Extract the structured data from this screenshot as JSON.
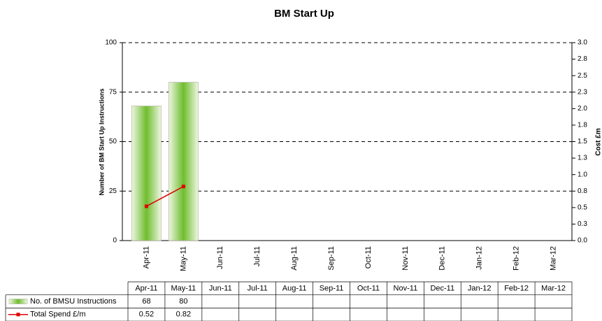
{
  "chart_data": {
    "type": "bar",
    "title": "BM Start Up",
    "y_label": "Number of BM Start Up Instructions",
    "y2_label": "Cost £m",
    "categories": [
      "Apr-11",
      "May-11",
      "Jun-11",
      "Jul-11",
      "Aug-11",
      "Sep-11",
      "Oct-11",
      "Nov-11",
      "Dec-11",
      "Jan-12",
      "Feb-12",
      "Mar-12"
    ],
    "series": [
      {
        "name": "No. of BMSU Instructions",
        "type": "bar",
        "color": "#7ac143",
        "values": [
          68,
          80,
          null,
          null,
          null,
          null,
          null,
          null,
          null,
          null,
          null,
          null
        ]
      },
      {
        "name": "Total Spend £/m",
        "type": "line",
        "axis": "y2",
        "color": "#e00000",
        "values": [
          0.52,
          0.82,
          null,
          null,
          null,
          null,
          null,
          null,
          null,
          null,
          null,
          null
        ]
      }
    ],
    "ylim": [
      0,
      100
    ],
    "yticks": [
      0,
      25,
      50,
      75,
      100
    ],
    "y2lim": [
      0,
      3
    ],
    "y2ticks": [
      {
        "value": 0,
        "label": "0.0"
      },
      {
        "value": 0.25,
        "label": "0.3"
      },
      {
        "value": 0.5,
        "label": "0.5"
      },
      {
        "value": 0.75,
        "label": "0.8"
      },
      {
        "value": 1,
        "label": "1.0"
      },
      {
        "value": 1.25,
        "label": "1.3"
      },
      {
        "value": 1.5,
        "label": "1.5"
      },
      {
        "value": 1.75,
        "label": "1.8"
      },
      {
        "value": 2,
        "label": "2.0"
      },
      {
        "value": 2.25,
        "label": "2.3"
      },
      {
        "value": 2.5,
        "label": "2.5"
      },
      {
        "value": 2.75,
        "label": "2.8"
      },
      {
        "value": 3,
        "label": "3.0"
      }
    ],
    "grid": true
  }
}
